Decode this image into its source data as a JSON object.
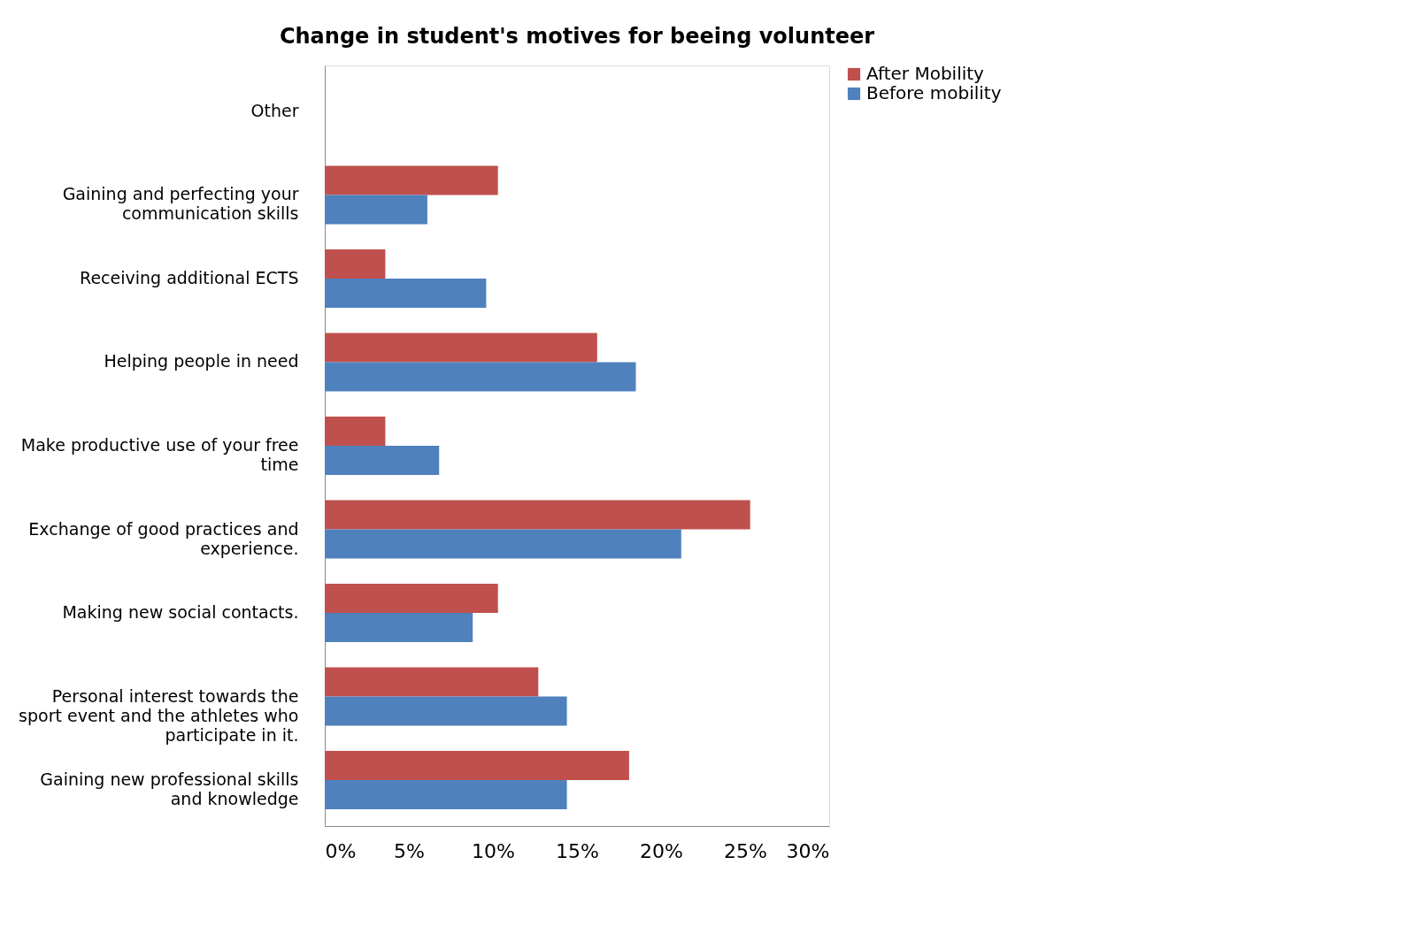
{
  "chart_data": {
    "type": "bar",
    "orientation": "horizontal",
    "title": "Change in student's motives for beeing volunteer",
    "categories": [
      "Other",
      "Gaining and perfecting your communication skills",
      "Receiving additional ECTS",
      "Helping people in need",
      "Make productive use of your free time",
      "Exchange of good practices and experience.",
      "Making new social contacts.",
      "Personal interest towards the sport event and the athletes who participate in it.",
      "Gaining new professional skills and knowledge"
    ],
    "series": [
      {
        "name": "After Mobility",
        "color": "#c0504d",
        "values": [
          0,
          10.3,
          3.6,
          16.2,
          3.6,
          25.3,
          10.3,
          12.7,
          18.1
        ]
      },
      {
        "name": "Before mobility",
        "color": "#4f81bd",
        "values": [
          0,
          6.1,
          9.6,
          18.5,
          6.8,
          21.2,
          8.8,
          14.4,
          14.4
        ]
      }
    ],
    "xlim": [
      0,
      30
    ],
    "xticks": [
      {
        "value": 0,
        "label": "0%"
      },
      {
        "value": 5,
        "label": "5%"
      },
      {
        "value": 10,
        "label": "10%"
      },
      {
        "value": 15,
        "label": "15%"
      },
      {
        "value": 20,
        "label": "20%"
      },
      {
        "value": 25,
        "label": "25%"
      },
      {
        "value": 30,
        "label": "30%"
      }
    ],
    "grid": false,
    "legend": "right"
  }
}
